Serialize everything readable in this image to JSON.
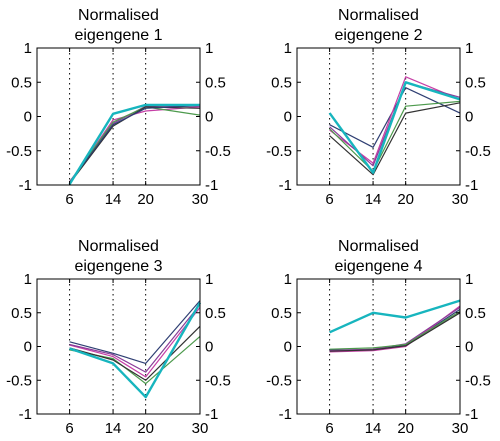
{
  "x_ticks": [
    6,
    14,
    20,
    30
  ],
  "y_ticks": [
    -1,
    -0.5,
    0,
    0.5,
    1
  ],
  "vlines": [
    6,
    14,
    20
  ],
  "colors": {
    "cyan": "#17b5be",
    "purple": "#8a3d9a",
    "magenta": "#c63fa6",
    "green": "#4d9a4d",
    "navy": "#2f3f73",
    "dark": "#333333",
    "axis": "#000000"
  },
  "chart_data": [
    {
      "type": "line",
      "title_lines": [
        "Normalised",
        "eigengene 1"
      ],
      "x": [
        6,
        14,
        20,
        30
      ],
      "ylim": [
        -1,
        1
      ],
      "xlim": [
        0,
        30
      ],
      "series": [
        {
          "color": "purple",
          "width": 1.2,
          "values": [
            -0.95,
            -0.1,
            0.15,
            0.15
          ]
        },
        {
          "color": "magenta",
          "width": 1.2,
          "values": [
            -0.97,
            -0.05,
            0.08,
            0.14
          ]
        },
        {
          "color": "green",
          "width": 1.2,
          "values": [
            -0.96,
            -0.08,
            0.14,
            0.02
          ]
        },
        {
          "color": "dark",
          "width": 1.2,
          "values": [
            -0.98,
            -0.14,
            0.14,
            0.12
          ]
        },
        {
          "color": "navy",
          "width": 1.2,
          "values": [
            -0.96,
            -0.12,
            0.12,
            0.16
          ]
        },
        {
          "color": "cyan",
          "width": 2.4,
          "values": [
            -0.99,
            0.04,
            0.17,
            0.17
          ]
        }
      ]
    },
    {
      "type": "line",
      "title_lines": [
        "Normalised",
        "eigengene 2"
      ],
      "x": [
        6,
        14,
        20,
        30
      ],
      "ylim": [
        -1,
        1
      ],
      "xlim": [
        0,
        30
      ],
      "series": [
        {
          "color": "navy",
          "width": 1.2,
          "values": [
            -0.12,
            -0.45,
            0.42,
            0.05
          ]
        },
        {
          "color": "magenta",
          "width": 1.2,
          "values": [
            -0.2,
            -0.68,
            0.58,
            0.25
          ]
        },
        {
          "color": "purple",
          "width": 1.2,
          "values": [
            -0.15,
            -0.72,
            0.5,
            0.28
          ]
        },
        {
          "color": "green",
          "width": 1.2,
          "values": [
            -0.18,
            -0.8,
            0.15,
            0.22
          ]
        },
        {
          "color": "dark",
          "width": 1.2,
          "values": [
            -0.28,
            -0.85,
            0.05,
            0.2
          ]
        },
        {
          "color": "cyan",
          "width": 2.4,
          "values": [
            0.05,
            -0.82,
            0.5,
            0.25
          ]
        }
      ]
    },
    {
      "type": "line",
      "title_lines": [
        "Normalised",
        "eigengene 3"
      ],
      "x": [
        6,
        14,
        20,
        30
      ],
      "ylim": [
        -1,
        1
      ],
      "xlim": [
        0,
        30
      ],
      "series": [
        {
          "color": "navy",
          "width": 1.2,
          "values": [
            0.07,
            -0.1,
            -0.25,
            0.68
          ]
        },
        {
          "color": "magenta",
          "width": 1.2,
          "values": [
            0.02,
            -0.15,
            -0.45,
            0.58
          ]
        },
        {
          "color": "purple",
          "width": 1.2,
          "values": [
            0.03,
            -0.12,
            -0.38,
            0.62
          ]
        },
        {
          "color": "green",
          "width": 1.2,
          "values": [
            -0.05,
            -0.18,
            -0.55,
            0.15
          ]
        },
        {
          "color": "dark",
          "width": 1.2,
          "values": [
            -0.02,
            -0.2,
            -0.5,
            0.3
          ]
        },
        {
          "color": "cyan",
          "width": 2.4,
          "values": [
            -0.03,
            -0.25,
            -0.75,
            0.65
          ]
        }
      ]
    },
    {
      "type": "line",
      "title_lines": [
        "Normalised",
        "eigengene 4"
      ],
      "x": [
        6,
        14,
        20,
        30
      ],
      "ylim": [
        -1,
        1
      ],
      "xlim": [
        0,
        30
      ],
      "series": [
        {
          "color": "navy",
          "width": 1.2,
          "values": [
            -0.05,
            -0.05,
            0.02,
            0.55
          ]
        },
        {
          "color": "magenta",
          "width": 1.2,
          "values": [
            -0.08,
            -0.06,
            0.0,
            0.6
          ]
        },
        {
          "color": "purple",
          "width": 1.2,
          "values": [
            -0.06,
            -0.04,
            0.04,
            0.58
          ]
        },
        {
          "color": "green",
          "width": 1.2,
          "values": [
            -0.04,
            -0.02,
            0.03,
            0.52
          ]
        },
        {
          "color": "dark",
          "width": 1.2,
          "values": [
            -0.07,
            -0.05,
            0.01,
            0.5
          ]
        },
        {
          "color": "cyan",
          "width": 2.4,
          "values": [
            0.21,
            0.5,
            0.43,
            0.68
          ]
        }
      ]
    }
  ]
}
